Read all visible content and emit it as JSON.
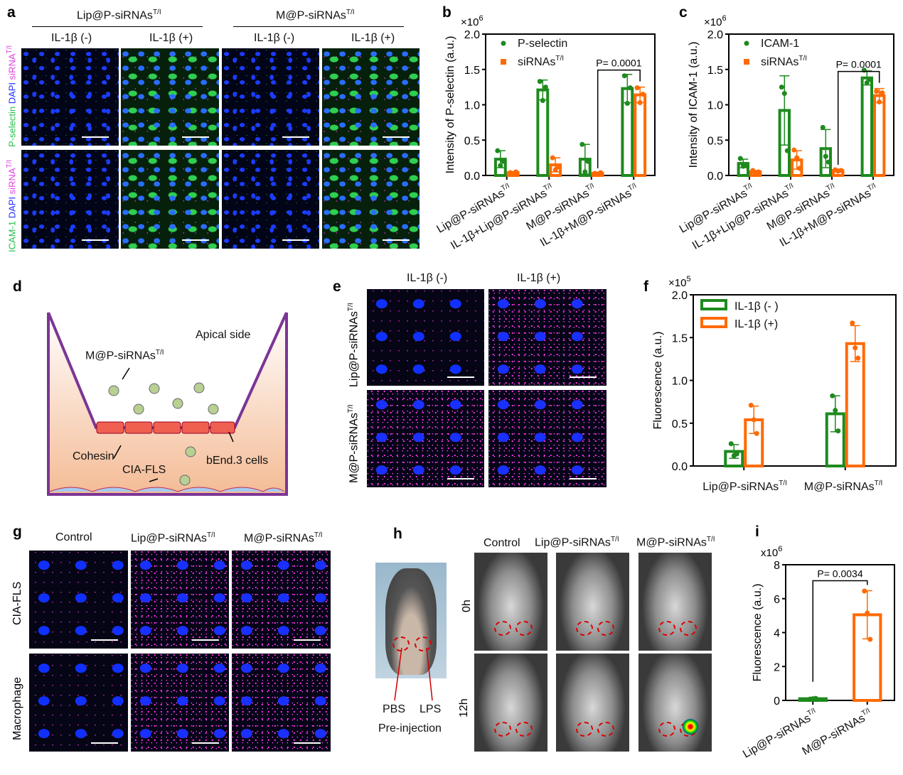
{
  "panel_letters": {
    "a": "a",
    "b": "b",
    "c": "c",
    "d": "d",
    "e": "e",
    "f": "f",
    "g": "g",
    "h": "h",
    "i": "i"
  },
  "panel_a": {
    "groups": [
      {
        "label": "Lip@P-siRNAs",
        "sup": "T/I"
      },
      {
        "label": "M@P-siRNAs",
        "sup": "T/I"
      }
    ],
    "conditions": [
      "IL-1β (-)",
      "IL-1β (+)",
      "IL-1β (-)",
      "IL-1β (+)"
    ],
    "row1_label": {
      "parts": [
        "P-selectin",
        "DAPI",
        "siRNA"
      ],
      "sup": "T/I"
    },
    "row2_label": {
      "parts": [
        "ICAM-1",
        "DAPI",
        "siRNA"
      ],
      "sup": "T/I"
    },
    "stain_colors": {
      "green": "#22c04a",
      "blue": "#1a2cff",
      "magenta": "#e040e0"
    }
  },
  "panel_d": {
    "apical": "Apical side",
    "particle": "M@P-siRNAs",
    "particle_sup": "T/I",
    "cohesin": "Cohesin",
    "cells": "bEnd.3 cells",
    "fls": "CIA-FLS",
    "wall_color": "#7b3596"
  },
  "panel_e": {
    "conditions": [
      "IL-1β (-)",
      "IL-1β (+)"
    ],
    "rows": [
      {
        "label": "Lip@P-siRNAs",
        "sup": "T/I"
      },
      {
        "label": "M@P-siRNAs",
        "sup": "T/I"
      }
    ]
  },
  "panel_g": {
    "columns": [
      {
        "label": "Control",
        "sup": ""
      },
      {
        "label": "Lip@P-siRNAs",
        "sup": "T/I"
      },
      {
        "label": "M@P-siRNAs",
        "sup": "T/I"
      }
    ],
    "rows": [
      "CIA-FLS",
      "Macrophage"
    ]
  },
  "panel_h": {
    "columns": [
      {
        "label": "Control",
        "sup": ""
      },
      {
        "label": "Lip@P-siRNAs",
        "sup": "T/I"
      },
      {
        "label": "M@P-siRNAs",
        "sup": "T/I"
      }
    ],
    "rows": [
      "0h",
      "12h"
    ],
    "pbs": "PBS",
    "lps": "LPS",
    "pre": "Pre-injection"
  },
  "chart_data": [
    {
      "id": "b",
      "type": "bar",
      "ylabel": "Intensity of P-selectin (a.u.)",
      "multiplier": "×10",
      "multiplier_exp": "6",
      "ylim": [
        0,
        2.0
      ],
      "ticks": [
        "0.0",
        "0.5",
        "1.0",
        "1.5",
        "2.0"
      ],
      "tick_values": [
        0,
        0.5,
        1,
        1.5,
        2
      ],
      "categories": [
        {
          "label": "Lip@P-siRNAs",
          "sup": "T/I"
        },
        {
          "label": "IL-1β+Lip@P-siRNAs",
          "sup": "T/I"
        },
        {
          "label": "M@P-siRNAs",
          "sup": "T/I"
        },
        {
          "label": "IL-1β+M@P-siRNAs",
          "sup": "T/I"
        }
      ],
      "legend_style": "markers",
      "legend": "top-left",
      "series": [
        {
          "name": "P-selectin",
          "color": "#1e8a1e",
          "values": [
            0.23,
            1.21,
            0.23,
            1.23
          ],
          "err": [
            0.12,
            0.14,
            0.21,
            0.2
          ],
          "points": [
            [
              0.35,
              0.14,
              0.2
            ],
            [
              1.33,
              1.06,
              1.25
            ],
            [
              0.44,
              0.05,
              0.2
            ],
            [
              1.41,
              1.02,
              1.24
            ]
          ]
        },
        {
          "name": "siRNAs",
          "sup": "T/I",
          "color": "#ff6a00",
          "values": [
            0.04,
            0.15,
            0.03,
            1.14
          ],
          "err": [
            0.01,
            0.1,
            0.01,
            0.11
          ],
          "points": [
            [
              0.04,
              0.03,
              0.05
            ],
            [
              0.25,
              0.08,
              0.12
            ],
            [
              0.03,
              0.02,
              0.04
            ],
            [
              1.24,
              1.03,
              1.15
            ]
          ]
        }
      ],
      "significance": {
        "text": "P= 0.0001",
        "from": [
          2,
          1
        ],
        "to": [
          3,
          1
        ]
      }
    },
    {
      "id": "c",
      "type": "bar",
      "ylabel": "Intensity of ICAM-1 (a.u.)",
      "multiplier": "×10",
      "multiplier_exp": "6",
      "ylim": [
        0,
        2.0
      ],
      "ticks": [
        "0.0",
        "0.5",
        "1.0",
        "1.5",
        "2.0"
      ],
      "tick_values": [
        0,
        0.5,
        1,
        1.5,
        2
      ],
      "categories": [
        {
          "label": "Lip@P-siRNAs",
          "sup": "T/I"
        },
        {
          "label": "IL-1β+Lip@P-siRNAs",
          "sup": "T/I"
        },
        {
          "label": "M@P-siRNAs",
          "sup": "T/I"
        },
        {
          "label": "IL-1β+M@P-siRNAs",
          "sup": "T/I"
        }
      ],
      "legend_style": "markers",
      "legend": "top-left",
      "series": [
        {
          "name": "ICAM-1",
          "color": "#1e8a1e",
          "values": [
            0.17,
            0.92,
            0.38,
            1.38
          ],
          "err": [
            0.06,
            0.49,
            0.27,
            0.1
          ],
          "points": [
            [
              0.24,
              0.13,
              0.14
            ],
            [
              1.25,
              1.16,
              0.35
            ],
            [
              0.68,
              0.27,
              0.19
            ],
            [
              1.49,
              1.31,
              1.36
            ]
          ]
        },
        {
          "name": "siRNAs",
          "sup": "T/I",
          "color": "#ff6a00",
          "values": [
            0.05,
            0.22,
            0.07,
            1.13
          ],
          "err": [
            0.02,
            0.13,
            0.02,
            0.1
          ],
          "points": [
            [
              0.07,
              0.04,
              0.05
            ],
            [
              0.36,
              0.25,
              0.1
            ],
            [
              0.08,
              0.06,
              0.07
            ],
            [
              1.19,
              1.04,
              1.17
            ]
          ]
        }
      ],
      "significance": {
        "text": "P= 0.0001",
        "from": [
          2,
          1
        ],
        "to": [
          3,
          1
        ]
      }
    },
    {
      "id": "f",
      "type": "bar",
      "ylabel": "Fluorescence (a.u.)",
      "multiplier": "×10",
      "multiplier_exp": "5",
      "ylim": [
        0,
        2.0
      ],
      "ticks": [
        "0.0",
        "0.5",
        "1.0",
        "1.5",
        "2.0"
      ],
      "tick_values": [
        0,
        0.5,
        1,
        1.5,
        2
      ],
      "categories": [
        {
          "label": "Lip@P-siRNAs",
          "sup": "T/I"
        },
        {
          "label": "M@P-siRNAs",
          "sup": "T/I"
        }
      ],
      "legend_style": "boxes",
      "legend": "top-left",
      "series": [
        {
          "name": "IL-1β (- )",
          "color": "#1e8a1e",
          "values": [
            0.17,
            0.61
          ],
          "err": [
            0.08,
            0.21
          ],
          "points": [
            [
              0.26,
              0.12,
              0.14
            ],
            [
              0.82,
              0.65,
              0.41
            ]
          ]
        },
        {
          "name": "IL-1β (+)",
          "color": "#ff6a00",
          "values": [
            0.54,
            1.43
          ],
          "err": [
            0.16,
            0.21
          ],
          "points": [
            [
              0.71,
              0.54,
              0.38
            ],
            [
              1.67,
              1.38,
              1.26
            ]
          ]
        }
      ]
    },
    {
      "id": "i",
      "type": "bar",
      "ylabel": "Fluorescence (a.u.)",
      "multiplier": "x10",
      "multiplier_exp": "6",
      "ylim": [
        0,
        8
      ],
      "ticks": [
        "0",
        "2",
        "4",
        "6",
        "8"
      ],
      "tick_values": [
        0,
        2,
        4,
        6,
        8
      ],
      "categories": [
        {
          "label": "Lip@P-siRNAs",
          "sup": "T/I"
        },
        {
          "label": "M@P-siRNAs",
          "sup": "T/I"
        }
      ],
      "legend_style": "none",
      "series": [
        {
          "color": "#1e8a1e",
          "colors": [
            "#1e8a1e",
            "#ff6a00"
          ],
          "values": [
            0.1,
            5.05
          ],
          "err": [
            0.02,
            1.42
          ],
          "points": [
            [
              0.08,
              0.1,
              0.12
            ],
            [
              6.45,
              5.15,
              3.6
            ]
          ]
        }
      ],
      "significance": {
        "text": "P= 0.0034",
        "from": [
          0,
          0
        ],
        "to": [
          1,
          0
        ]
      }
    }
  ]
}
